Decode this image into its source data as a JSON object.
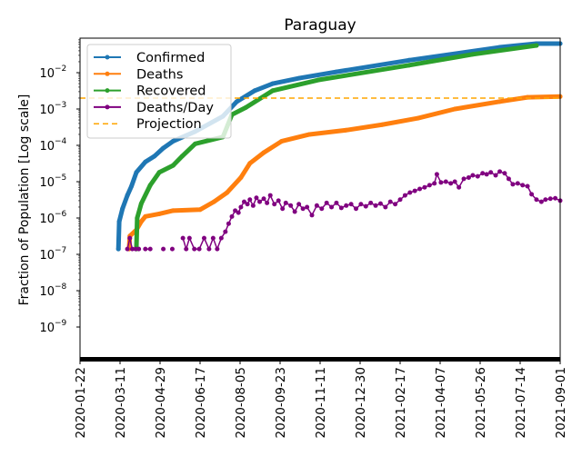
{
  "chart_data": {
    "type": "line",
    "title": "Paraguay",
    "xlabel": "",
    "ylabel": "Fraction of Population [Log scale]",
    "yscale": "log",
    "ylim": [
      1.2e-10,
      0.09
    ],
    "x_origin_date": "2020-01-22",
    "x_unit": "days since x_origin_date",
    "xlim": [
      0,
      588
    ],
    "x_ticks": [
      0,
      49,
      98,
      147,
      196,
      245,
      294,
      343,
      392,
      441,
      490,
      539,
      588
    ],
    "x_tick_labels": [
      "2020-01-22",
      "2020-03-11",
      "2020-04-29",
      "2020-06-17",
      "2020-08-05",
      "2020-09-23",
      "2020-11-11",
      "2020-12-30",
      "2021-02-17",
      "2021-04-07",
      "2021-05-26",
      "2021-07-14",
      "2021-09-01"
    ],
    "y_ticks": [
      -9,
      -8,
      -7,
      -6,
      -5,
      -4,
      -3,
      -2
    ],
    "y_tick_labels": [
      "10",
      "10",
      "10",
      "10",
      "10",
      "10",
      "10",
      "10"
    ],
    "y_tick_exponents": [
      "−9",
      "−8",
      "−7",
      "−6",
      "−5",
      "−4",
      "−3",
      "−2"
    ],
    "legend_position": "upper-left",
    "series": [
      {
        "name": "Confirmed",
        "color": "#1f77b4",
        "style": "line-marker",
        "points": [
          [
            47,
            1.4e-07
          ],
          [
            48,
            8e-07
          ],
          [
            52,
            1.8e-06
          ],
          [
            58,
            4.2e-06
          ],
          [
            63,
            7.5e-06
          ],
          [
            69,
            1.8e-05
          ],
          [
            80,
            3.5e-05
          ],
          [
            91,
            5e-05
          ],
          [
            102,
            8.4e-05
          ],
          [
            114,
            0.00013
          ],
          [
            141,
            0.00024
          ],
          [
            175,
            0.00063
          ],
          [
            192,
            0.0016
          ],
          [
            214,
            0.0032
          ],
          [
            236,
            0.005
          ],
          [
            269,
            0.0071
          ],
          [
            314,
            0.0105
          ],
          [
            403,
            0.022
          ],
          [
            514,
            0.05
          ],
          [
            559,
            0.063
          ],
          [
            588,
            0.063
          ]
        ]
      },
      {
        "name": "Deaths",
        "color": "#ff7f0e",
        "style": "line-marker",
        "points": [
          [
            60,
            1.4e-07
          ],
          [
            61,
            3.2e-07
          ],
          [
            69,
            4.7e-07
          ],
          [
            75,
            8e-07
          ],
          [
            80,
            1.1e-06
          ],
          [
            97,
            1.3e-06
          ],
          [
            114,
            1.6e-06
          ],
          [
            147,
            1.7e-06
          ],
          [
            164,
            2.8e-06
          ],
          [
            180,
            5e-06
          ],
          [
            197,
            1.3e-05
          ],
          [
            208,
            3.2e-05
          ],
          [
            225,
            6.3e-05
          ],
          [
            247,
            0.00013
          ],
          [
            281,
            0.0002
          ],
          [
            325,
            0.00026
          ],
          [
            370,
            0.00037
          ],
          [
            414,
            0.00056
          ],
          [
            459,
            0.001
          ],
          [
            514,
            0.0016
          ],
          [
            548,
            0.0021
          ],
          [
            588,
            0.0022
          ]
        ]
      },
      {
        "name": "Recovered",
        "color": "#2ca02c",
        "style": "line-marker",
        "points": [
          [
            69,
            1.4e-07
          ],
          [
            70,
            1e-06
          ],
          [
            75,
            2.5e-06
          ],
          [
            86,
            8e-06
          ],
          [
            97,
            1.8e-05
          ],
          [
            114,
            2.8e-05
          ],
          [
            125,
            5e-05
          ],
          [
            141,
            0.00011
          ],
          [
            175,
            0.00017
          ],
          [
            186,
            0.0007
          ],
          [
            203,
            0.0011
          ],
          [
            236,
            0.0032
          ],
          [
            292,
            0.0063
          ],
          [
            403,
            0.016
          ],
          [
            481,
            0.032
          ],
          [
            559,
            0.056
          ]
        ]
      },
      {
        "name": "Deaths/Day",
        "color": "#800080",
        "style": "marker",
        "points": [
          [
            58,
            1.4e-07
          ],
          [
            61,
            2.8e-07
          ],
          [
            64,
            1.4e-07
          ],
          [
            68,
            1.4e-07
          ],
          [
            72,
            1.4e-07
          ],
          [
            80,
            1.4e-07
          ],
          [
            86,
            1.4e-07
          ],
          [
            102,
            1.4e-07
          ],
          [
            113,
            1.4e-07
          ],
          [
            126,
            2.8e-07
          ],
          [
            130,
            1.4e-07
          ],
          [
            134,
            2.8e-07
          ],
          [
            140,
            1.4e-07
          ],
          [
            146,
            1.4e-07
          ],
          [
            152,
            2.8e-07
          ],
          [
            158,
            1.4e-07
          ],
          [
            163,
            2.8e-07
          ],
          [
            168,
            1.4e-07
          ],
          [
            173,
            2.8e-07
          ],
          [
            178,
            4.2e-07
          ],
          [
            182,
            7e-07
          ],
          [
            186,
            1.1e-06
          ],
          [
            190,
            1.6e-06
          ],
          [
            194,
            1.4e-06
          ],
          [
            197,
            2e-06
          ],
          [
            201,
            2.8e-06
          ],
          [
            205,
            2.4e-06
          ],
          [
            208,
            3.2e-06
          ],
          [
            212,
            2.2e-06
          ],
          [
            216,
            3.6e-06
          ],
          [
            220,
            2.8e-06
          ],
          [
            225,
            3.4e-06
          ],
          [
            229,
            2.6e-06
          ],
          [
            233,
            4.2e-06
          ],
          [
            238,
            2.4e-06
          ],
          [
            243,
            3e-06
          ],
          [
            248,
            1.8e-06
          ],
          [
            252,
            2.6e-06
          ],
          [
            258,
            2.2e-06
          ],
          [
            263,
            1.5e-06
          ],
          [
            268,
            2.4e-06
          ],
          [
            273,
            1.8e-06
          ],
          [
            278,
            2e-06
          ],
          [
            284,
            1.2e-06
          ],
          [
            290,
            2.2e-06
          ],
          [
            296,
            1.8e-06
          ],
          [
            302,
            2.6e-06
          ],
          [
            308,
            2e-06
          ],
          [
            314,
            2.6e-06
          ],
          [
            320,
            1.9e-06
          ],
          [
            326,
            2.2e-06
          ],
          [
            332,
            2.4e-06
          ],
          [
            338,
            1.8e-06
          ],
          [
            344,
            2.4e-06
          ],
          [
            350,
            2.1e-06
          ],
          [
            356,
            2.6e-06
          ],
          [
            362,
            2.2e-06
          ],
          [
            368,
            2.5e-06
          ],
          [
            374,
            2e-06
          ],
          [
            380,
            2.8e-06
          ],
          [
            386,
            2.4e-06
          ],
          [
            392,
            3.2e-06
          ],
          [
            398,
            4.2e-06
          ],
          [
            404,
            5e-06
          ],
          [
            410,
            5.6e-06
          ],
          [
            416,
            6.3e-06
          ],
          [
            422,
            7e-06
          ],
          [
            428,
            8e-06
          ],
          [
            434,
            9e-06
          ],
          [
            437,
            1.6e-05
          ],
          [
            442,
            9.5e-06
          ],
          [
            448,
            1e-05
          ],
          [
            454,
            9e-06
          ],
          [
            459,
            1e-05
          ],
          [
            464,
            7e-06
          ],
          [
            470,
            1.2e-05
          ],
          [
            476,
            1.3e-05
          ],
          [
            481,
            1.5e-05
          ],
          [
            487,
            1.4e-05
          ],
          [
            493,
            1.7e-05
          ],
          [
            498,
            1.6e-05
          ],
          [
            503,
            1.8e-05
          ],
          [
            509,
            1.5e-05
          ],
          [
            514,
            1.9e-05
          ],
          [
            520,
            1.7e-05
          ],
          [
            525,
            1.2e-05
          ],
          [
            530,
            8.5e-06
          ],
          [
            536,
            9e-06
          ],
          [
            542,
            8e-06
          ],
          [
            548,
            7.5e-06
          ],
          [
            553,
            4.5e-06
          ],
          [
            559,
            3.2e-06
          ],
          [
            565,
            2.8e-06
          ],
          [
            570,
            3.2e-06
          ],
          [
            576,
            3.4e-06
          ],
          [
            582,
            3.5e-06
          ],
          [
            588,
            3e-06
          ]
        ]
      },
      {
        "name": "Projection",
        "color": "#ffa500",
        "style": "dashed",
        "value": 0.002
      }
    ]
  }
}
